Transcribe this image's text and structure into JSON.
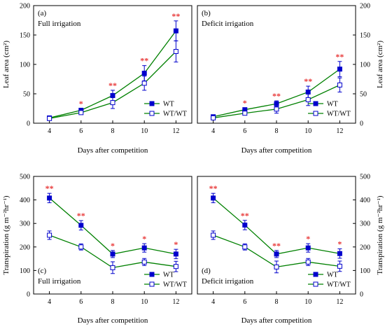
{
  "colors": {
    "line": "#008000",
    "marker": "#0000cc",
    "significance": "#e83a3a"
  },
  "chart_data": [
    {
      "type": "line",
      "panel_label": "(a)",
      "subtitle": "Full irrigation",
      "xlabel": "Days after competition",
      "ylabel": "Leaf area (cm²)",
      "x": [
        4,
        6,
        8,
        10,
        12
      ],
      "xlim": [
        3,
        13
      ],
      "ylim": [
        0,
        200
      ],
      "yticks": [
        0,
        50,
        100,
        150,
        200
      ],
      "legend_position": "lower-right",
      "series": [
        {
          "name": "WT",
          "marker": "filled-square",
          "values": [
            9,
            22,
            47,
            85,
            157
          ],
          "errors": [
            3,
            3,
            9,
            13,
            17
          ]
        },
        {
          "name": "WT/WT",
          "marker": "open-square",
          "values": [
            8,
            18,
            35,
            68,
            122
          ],
          "errors": [
            3,
            3,
            10,
            12,
            18
          ]
        }
      ],
      "significance": [
        "",
        "*",
        "**",
        "**",
        "**"
      ]
    },
    {
      "type": "line",
      "panel_label": "(b)",
      "subtitle": "Deficit irrigation",
      "xlabel": "Days after competition",
      "ylabel": "Leaf area (cm²)",
      "x": [
        4,
        6,
        8,
        10,
        12
      ],
      "xlim": [
        3,
        13
      ],
      "ylim": [
        0,
        200
      ],
      "yticks": [
        0,
        50,
        100,
        150,
        200
      ],
      "legend_position": "lower-right",
      "series": [
        {
          "name": "WT",
          "marker": "filled-square",
          "values": [
            11,
            23,
            33,
            53,
            92
          ],
          "errors": [
            2,
            3,
            5,
            10,
            13
          ]
        },
        {
          "name": "WT/WT",
          "marker": "open-square",
          "values": [
            9,
            17,
            24,
            40,
            65
          ],
          "errors": [
            2,
            3,
            7,
            10,
            12
          ]
        }
      ],
      "significance": [
        "",
        "*",
        "**",
        "**",
        "**"
      ]
    },
    {
      "type": "line",
      "panel_label": "(c)",
      "subtitle": "Full irrigation",
      "xlabel": "Days after competition",
      "ylabel": "Transpiration (g m⁻²hr⁻¹)",
      "x": [
        4,
        6,
        8,
        10,
        12
      ],
      "xlim": [
        3,
        13
      ],
      "ylim": [
        0,
        500
      ],
      "yticks": [
        0,
        100,
        200,
        300,
        400,
        500
      ],
      "legend_position": "lower-right",
      "series": [
        {
          "name": "WT",
          "marker": "filled-square",
          "values": [
            408,
            292,
            170,
            196,
            170
          ],
          "errors": [
            20,
            20,
            15,
            18,
            20
          ]
        },
        {
          "name": "WT/WT",
          "marker": "open-square",
          "values": [
            250,
            200,
            112,
            136,
            117
          ],
          "errors": [
            18,
            13,
            25,
            15,
            22
          ]
        }
      ],
      "significance": [
        "**",
        "**",
        "*",
        "*",
        "*"
      ]
    },
    {
      "type": "line",
      "panel_label": "(d)",
      "subtitle": "Deficit irrigation",
      "xlabel": "Days after competition",
      "ylabel": "Transpiration (g m⁻²hr⁻¹)",
      "x": [
        4,
        6,
        8,
        10,
        12
      ],
      "xlim": [
        3,
        13
      ],
      "ylim": [
        0,
        500
      ],
      "yticks": [
        0,
        100,
        200,
        300,
        400,
        500
      ],
      "legend_position": "lower-right",
      "series": [
        {
          "name": "WT",
          "marker": "filled-square",
          "values": [
            408,
            293,
            170,
            196,
            172
          ],
          "errors": [
            20,
            20,
            15,
            18,
            20
          ]
        },
        {
          "name": "WT/WT",
          "marker": "open-square",
          "values": [
            250,
            200,
            115,
            136,
            118
          ],
          "errors": [
            18,
            13,
            25,
            15,
            22
          ]
        }
      ],
      "significance": [
        "**",
        "**",
        "**",
        "*",
        "*"
      ]
    }
  ]
}
